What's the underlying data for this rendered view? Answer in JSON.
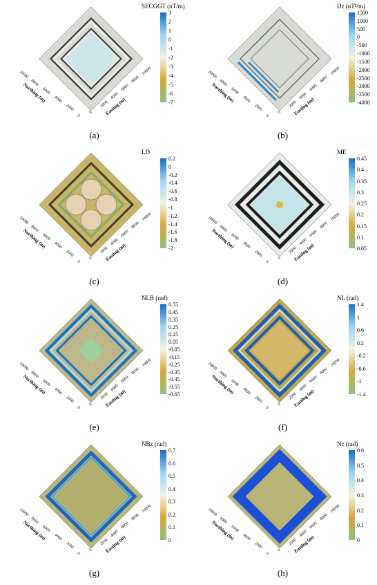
{
  "panels": [
    {
      "caption": "(a)",
      "cb_title": "SECGGT (nT/m)",
      "cb_ticks": [
        "3",
        "2",
        "1",
        "0",
        "-1",
        "-2",
        "-3",
        "-4",
        "-5",
        "-6",
        "-7"
      ],
      "cb_colors": [
        "#1b6ec2",
        "#9fd3ef",
        "#f2f2e6",
        "#d6a93a",
        "#8cc084"
      ],
      "x_axis": "Easting (m)",
      "y_axis": "Northing (m)",
      "x_ticks": [
        "0",
        "2000",
        "4000",
        "6000",
        "8000",
        "10000"
      ],
      "y_ticks": [
        "0",
        "2000",
        "4000",
        "6000",
        "8000",
        "10000"
      ],
      "style": "flat"
    },
    {
      "caption": "(b)",
      "cb_title": "Dz (nT²/m)",
      "cb_ticks": [
        "1500",
        "1000",
        "500",
        "0",
        "-500",
        "-1000",
        "-1500",
        "-2000",
        "-2500",
        "-3000",
        "-3500",
        "-4000"
      ],
      "cb_colors": [
        "#1b6ec2",
        "#9fd3ef",
        "#f2f2e6",
        "#d6a93a",
        "#8cc084"
      ],
      "x_axis": "Easting (m)",
      "y_axis": "Northing (m)",
      "x_ticks": [
        "0",
        "2000",
        "4000",
        "6000",
        "8000",
        "10000"
      ],
      "y_ticks": [
        "0",
        "2000",
        "4000",
        "6000",
        "8000",
        "10000"
      ],
      "style": "flat-lines"
    },
    {
      "caption": "(c)",
      "cb_title": "LD",
      "cb_ticks": [
        "0.2",
        "0",
        "-0.2",
        "-0.4",
        "-0.6",
        "-0.8",
        "-1",
        "-1.2",
        "-1.4",
        "-1.6",
        "-1.8",
        "-2"
      ],
      "cb_colors": [
        "#1b6ec2",
        "#9fd3ef",
        "#f2f2e6",
        "#d6a93a",
        "#8cc084"
      ],
      "x_axis": "Easting (m)",
      "y_axis": "Northing (m)",
      "x_ticks": [
        "0",
        "2000",
        "4000",
        "6000",
        "8000",
        "10000"
      ],
      "y_ticks": [
        "0",
        "2000",
        "4000",
        "6000",
        "8000",
        "10000"
      ],
      "style": "bumps"
    },
    {
      "caption": "(d)",
      "cb_title": "ME",
      "cb_ticks": [
        "0.45",
        "0.4",
        "0.35",
        "0.3",
        "0.25",
        "0.2",
        "0.15",
        "0.1",
        "0.05"
      ],
      "cb_colors": [
        "#1b6ec2",
        "#9fd3ef",
        "#f2f2e6",
        "#d6a93a",
        "#8cc084"
      ],
      "x_axis": "Easting (m)",
      "y_axis": "Northing (m)",
      "x_ticks": [
        "0",
        "2000",
        "4000",
        "6000",
        "8000",
        "10000"
      ],
      "y_ticks": [
        "0",
        "2000",
        "4000",
        "6000",
        "8000",
        "10000"
      ],
      "style": "dark-frame"
    },
    {
      "caption": "(e)",
      "cb_title": "NLB (rad)",
      "cb_ticks": [
        "0.55",
        "0.45",
        "0.35",
        "0.25",
        "0.15",
        "0.05",
        "-0.05",
        "-0.15",
        "-0.25",
        "-0.35",
        "-0.45",
        "-0.55",
        "-0.65"
      ],
      "cb_colors": [
        "#1b6ec2",
        "#9fd3ef",
        "#f2f2e6",
        "#d6a93a",
        "#8cc084"
      ],
      "x_axis": "Easting (m)",
      "y_axis": "Northing (m)",
      "x_ticks": [
        "0",
        "2000",
        "4000",
        "6000",
        "8000",
        "10000"
      ],
      "y_ticks": [
        "0",
        "2000",
        "4000",
        "6000",
        "8000",
        "10000"
      ],
      "style": "blue-frame"
    },
    {
      "caption": "(f)",
      "cb_title": "NL (rad)",
      "cb_ticks": [
        "1.4",
        "1",
        "0.6",
        "0.2",
        "-0.2",
        "-0.6",
        "-1",
        "-1.4"
      ],
      "cb_colors": [
        "#1b6ec2",
        "#9fd3ef",
        "#f2f2e6",
        "#d6a93a",
        "#8cc084"
      ],
      "x_axis": "Easting (m)",
      "y_axis": "Northing (m)",
      "x_ticks": [
        "0",
        "2000",
        "4000",
        "6000",
        "8000",
        "10000"
      ],
      "y_ticks": [
        "0",
        "2000",
        "4000",
        "6000",
        "8000",
        "10000"
      ],
      "style": "double-frame"
    },
    {
      "caption": "(g)",
      "cb_title": "NBz (rad)",
      "cb_ticks": [
        "0.7",
        "0.6",
        "0.5",
        "0.4",
        "0.3",
        "0.2",
        "0.1",
        "0"
      ],
      "cb_colors": [
        "#1b6ec2",
        "#9fd3ef",
        "#f2f2e6",
        "#d6a93a",
        "#8cc084"
      ],
      "x_axis": "Easting (m)",
      "y_axis": "Northing (m)",
      "x_ticks": [
        "0",
        "2000",
        "4000",
        "6000",
        "8000",
        "10000"
      ],
      "y_ticks": [
        "0",
        "2000",
        "4000",
        "6000",
        "8000",
        "10000"
      ],
      "style": "olive-frame"
    },
    {
      "caption": "(h)",
      "cb_title": "Nz (rad)",
      "cb_ticks": [
        "0.6",
        "0.5",
        "0.4",
        "0.3",
        "0.2",
        "0.1",
        "0"
      ],
      "cb_colors": [
        "#1b6ec2",
        "#9fd3ef",
        "#f2f2e6",
        "#d6a93a",
        "#8cc084"
      ],
      "x_axis": "Easting (m)",
      "y_axis": "Northing (m)",
      "x_ticks": [
        "0",
        "2000",
        "4000",
        "6000",
        "8000",
        "10000"
      ],
      "y_ticks": [
        "0",
        "2000",
        "4000",
        "6000",
        "8000",
        "10000"
      ],
      "style": "solid-frame"
    }
  ]
}
